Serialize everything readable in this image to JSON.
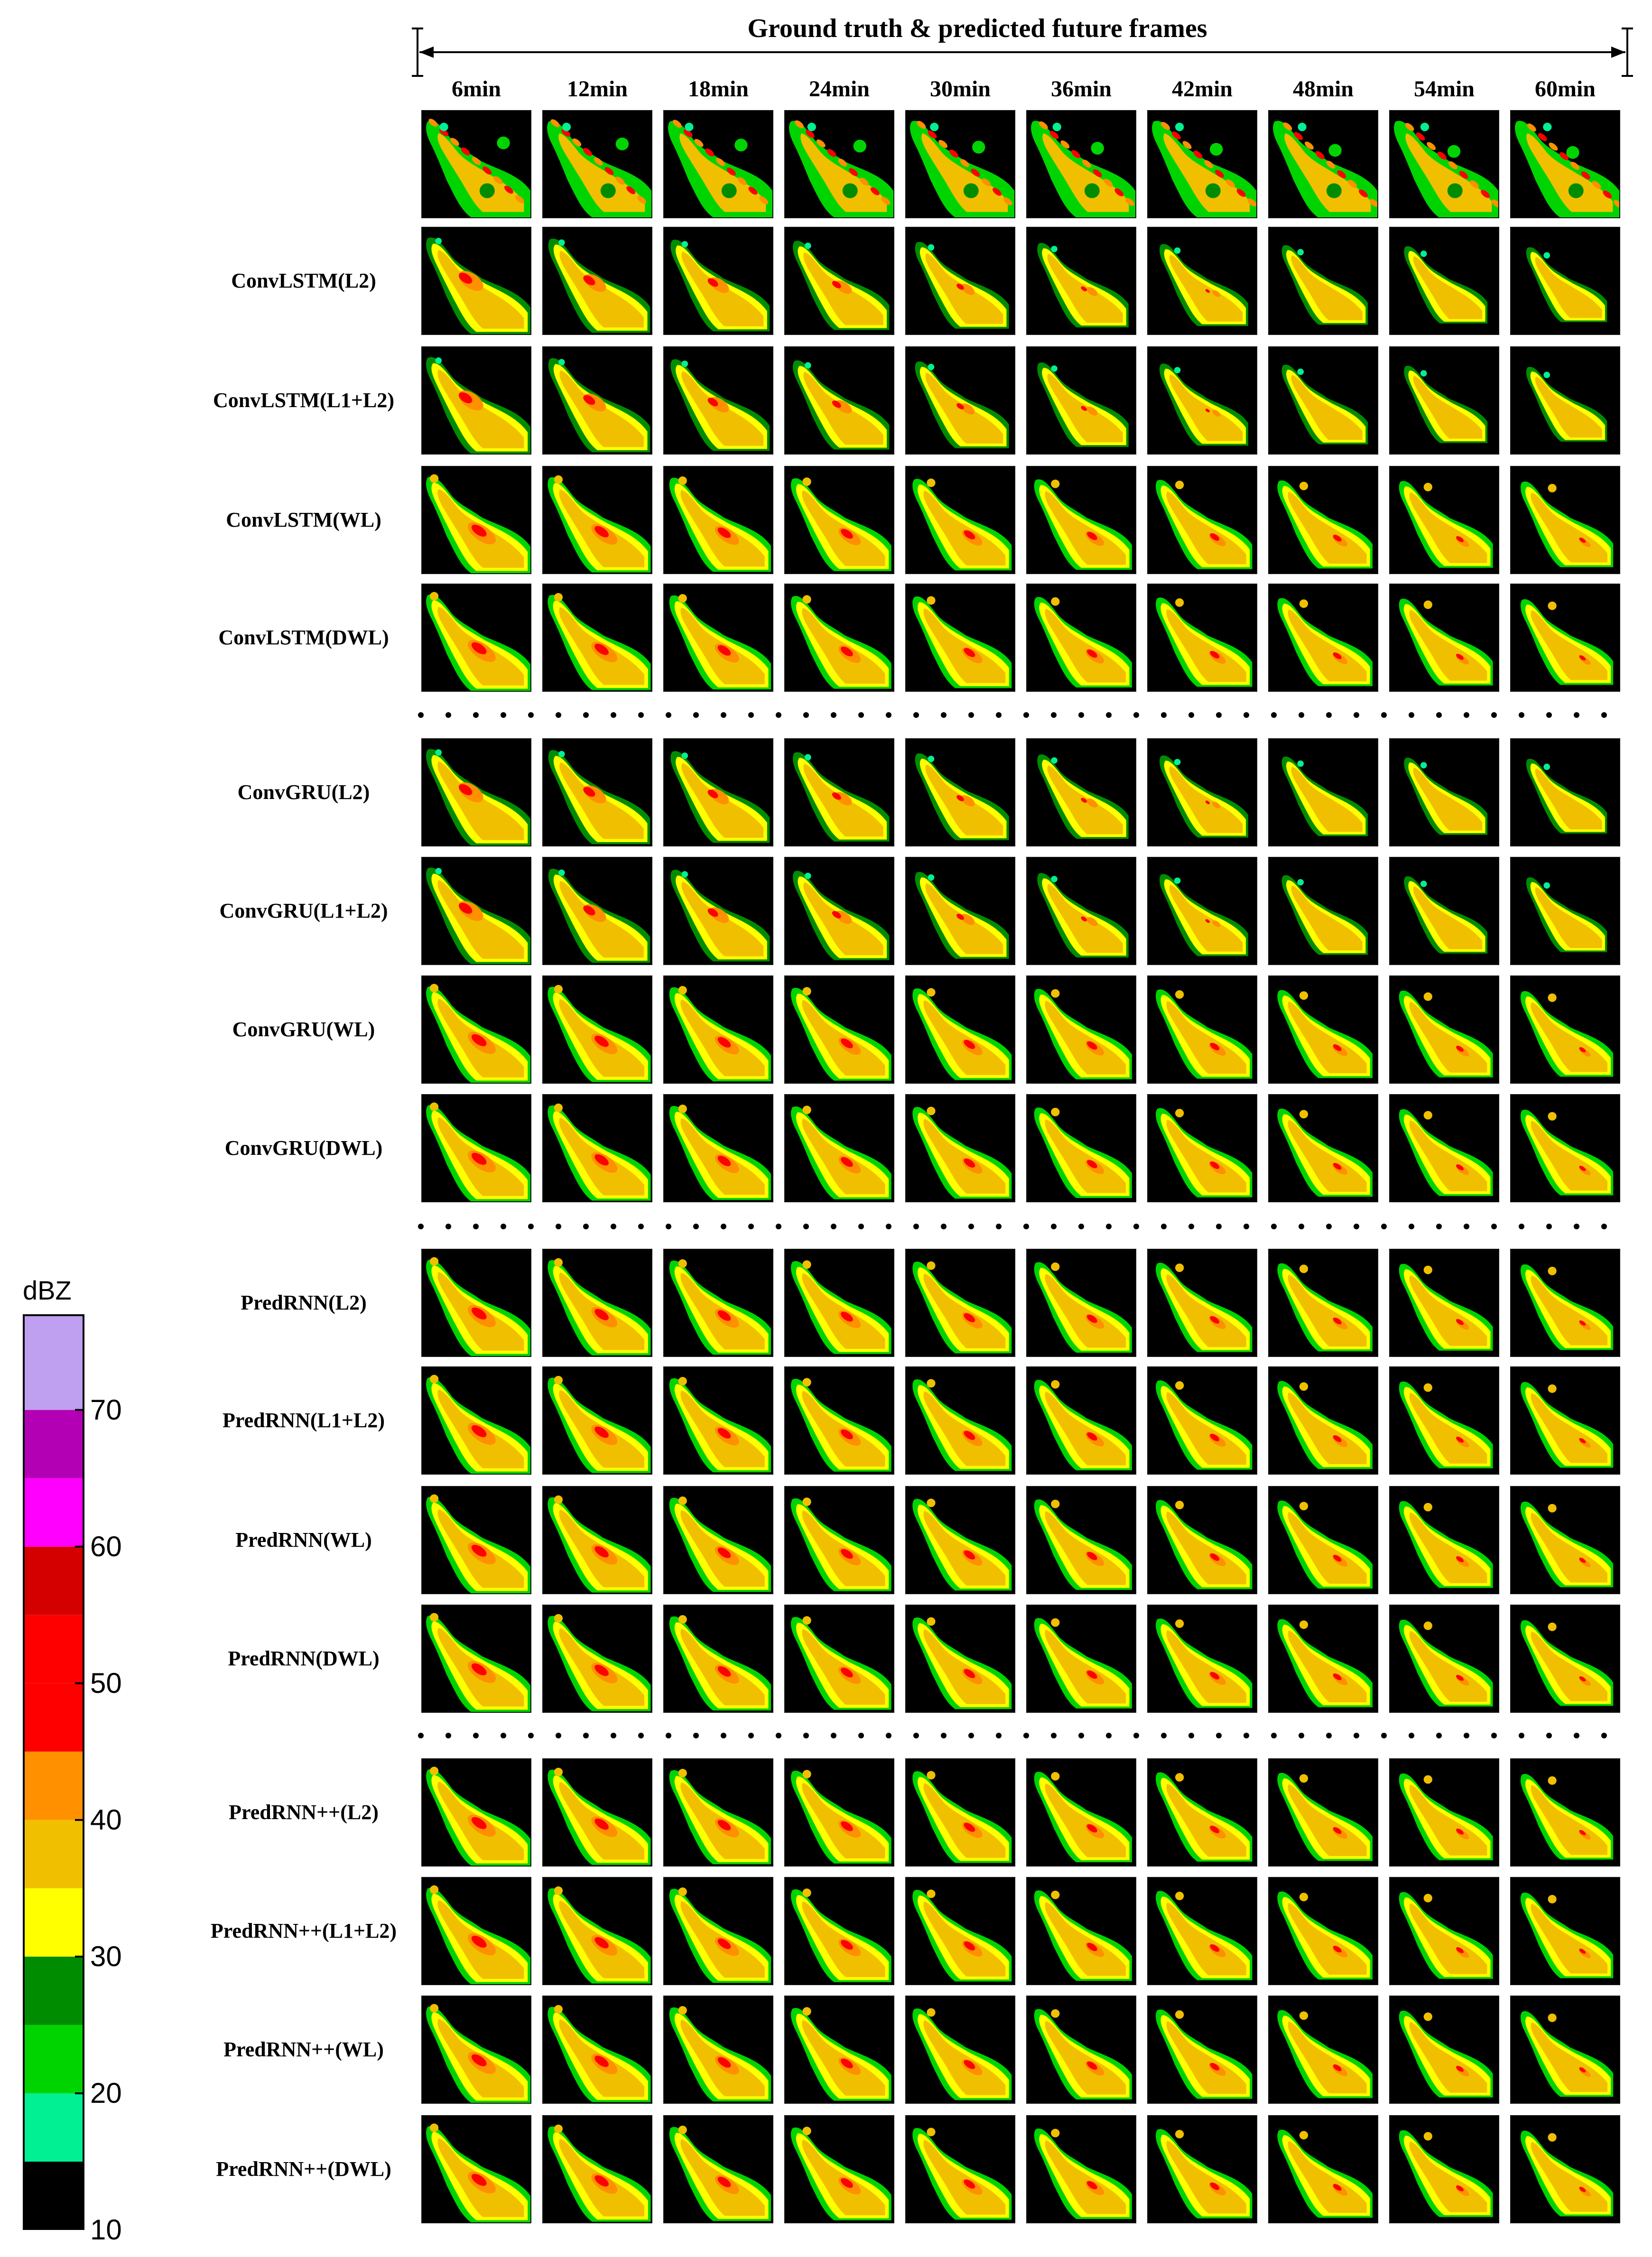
{
  "header": {
    "title": "Ground truth & predicted future frames"
  },
  "time_labels": [
    "6min",
    "12min",
    "18min",
    "24min",
    "30min",
    "36min",
    "42min",
    "48min",
    "54min",
    "60min"
  ],
  "rows": [
    {
      "label": "",
      "kind": "truth"
    },
    {
      "label": "ConvLSTM(L2)",
      "kind": "fade"
    },
    {
      "label": "ConvLSTM(L1+L2)",
      "kind": "fade"
    },
    {
      "label": "ConvLSTM(WL)",
      "kind": "smooth"
    },
    {
      "label": "ConvLSTM(DWL)",
      "kind": "smooth"
    },
    {
      "label": "ConvGRU(L2)",
      "kind": "fade"
    },
    {
      "label": "ConvGRU(L1+L2)",
      "kind": "fade"
    },
    {
      "label": "ConvGRU(WL)",
      "kind": "smooth"
    },
    {
      "label": "ConvGRU(DWL)",
      "kind": "smooth"
    },
    {
      "label": "PredRNN(L2)",
      "kind": "smooth"
    },
    {
      "label": "PredRNN(L1+L2)",
      "kind": "smooth"
    },
    {
      "label": "PredRNN(WL)",
      "kind": "smooth"
    },
    {
      "label": "PredRNN(DWL)",
      "kind": "smooth"
    },
    {
      "label": "PredRNN++(L2)",
      "kind": "smooth"
    },
    {
      "label": "PredRNN++(L1+L2)",
      "kind": "smooth"
    },
    {
      "label": "PredRNN++(WL)",
      "kind": "smooth"
    },
    {
      "label": "PredRNN++(DWL)",
      "kind": "smooth"
    }
  ],
  "colorbar": {
    "unit": "dBZ",
    "ticks": [
      10,
      20,
      30,
      40,
      50,
      60,
      70
    ],
    "range": [
      10,
      77
    ],
    "bands": [
      {
        "from": 10,
        "to": 15,
        "color": "#000000"
      },
      {
        "from": 15,
        "to": 20,
        "color": "#00f093"
      },
      {
        "from": 20,
        "to": 25,
        "color": "#00d400"
      },
      {
        "from": 25,
        "to": 30,
        "color": "#008c00"
      },
      {
        "from": 30,
        "to": 35,
        "color": "#ffff00"
      },
      {
        "from": 35,
        "to": 40,
        "color": "#f0c000"
      },
      {
        "from": 40,
        "to": 45,
        "color": "#ff9000"
      },
      {
        "from": 45,
        "to": 50,
        "color": "#ff0000"
      },
      {
        "from": 50,
        "to": 55,
        "color": "#ff0000"
      },
      {
        "from": 55,
        "to": 60,
        "color": "#d40000"
      },
      {
        "from": 60,
        "to": 65,
        "color": "#ff00ff"
      },
      {
        "from": 65,
        "to": 70,
        "color": "#b400b4"
      },
      {
        "from": 70,
        "to": 77,
        "color": "#bf9fef"
      }
    ]
  }
}
